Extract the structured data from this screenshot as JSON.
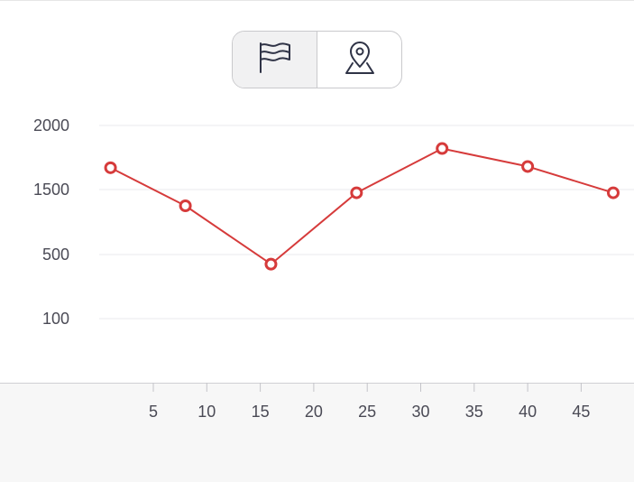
{
  "toolbar": {
    "buttons": [
      {
        "icon": "flag-icon",
        "active": true
      },
      {
        "icon": "map-pin-icon",
        "active": false
      }
    ]
  },
  "colors": {
    "series": "#d63b3b",
    "grid": "#e8e8ec",
    "tick_text": "#4a4a55",
    "toggle_active_bg": "#f1f1f2"
  },
  "chart_data": {
    "type": "line",
    "x": [
      1,
      8,
      16,
      24,
      32,
      40,
      48
    ],
    "series": [
      {
        "values": [
          1670,
          1250,
          440,
          1450,
          1820,
          1680,
          1450
        ]
      }
    ],
    "y_ticks": [
      "2000",
      "1500",
      "500",
      "100"
    ],
    "x_ticks": [
      "5",
      "10",
      "15",
      "20",
      "25",
      "30",
      "35",
      "40",
      "45"
    ],
    "grid": true
  }
}
